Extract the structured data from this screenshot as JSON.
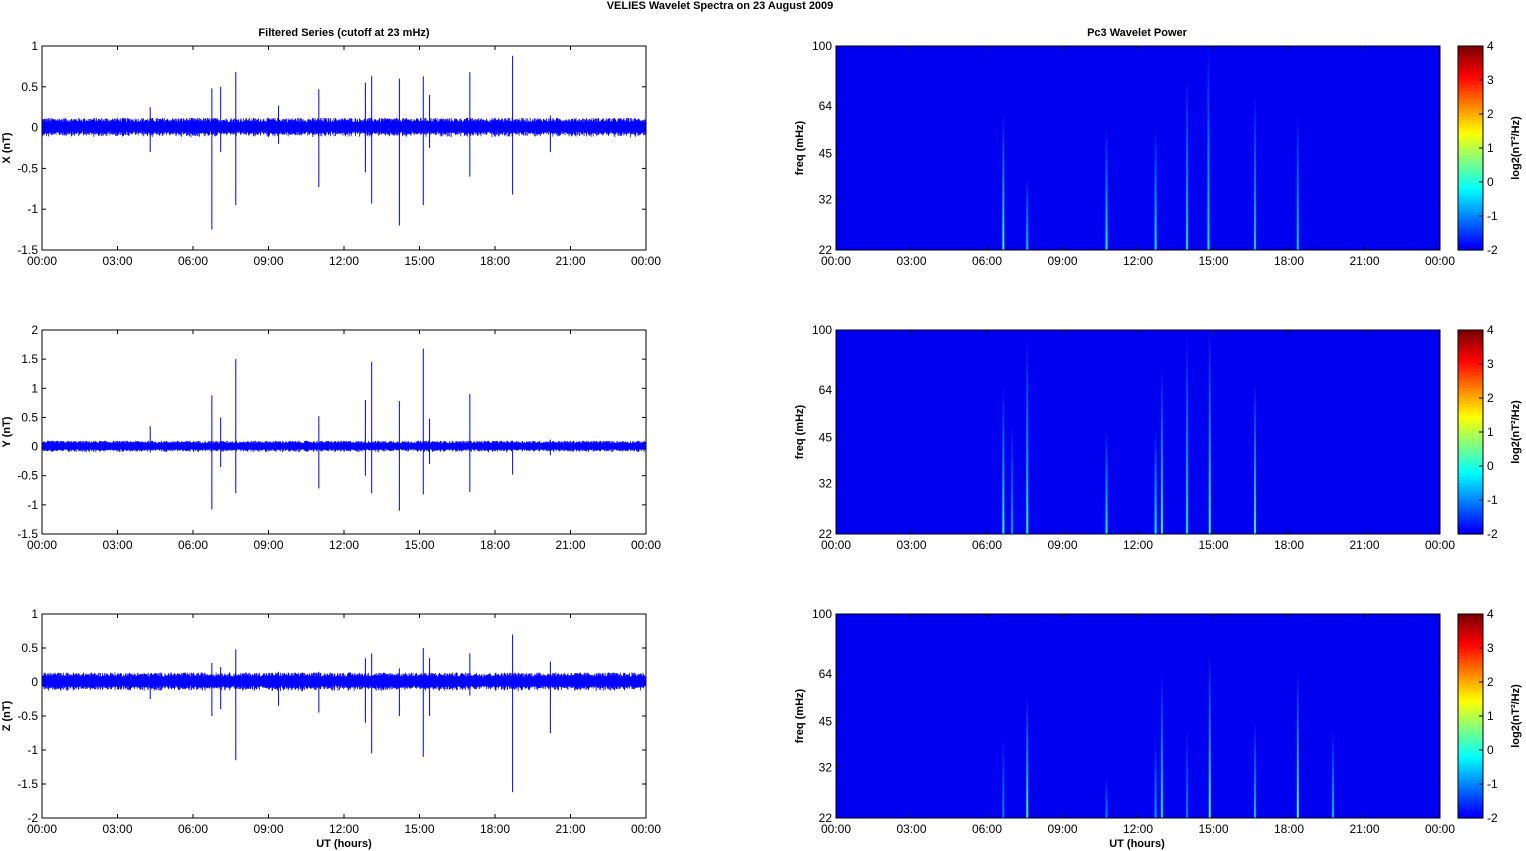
{
  "figure": {
    "title": "VELIES Wavelet Spectra on 23 August    2009",
    "left_title": "Filtered Series (cutoff at 23 mHz)",
    "right_title": "Pc3 Wavelet Power",
    "x_label": "UT (hours)",
    "background": "#ffffff"
  },
  "chart_data": [
    {
      "type": "line",
      "panel": "X",
      "ylabel": "X (nT)",
      "xlim": [
        0,
        24
      ],
      "ylim": [
        -1.5,
        1
      ],
      "x_ticks": [
        "00:00",
        "03:00",
        "06:00",
        "09:00",
        "12:00",
        "15:00",
        "18:00",
        "21:00",
        "00:00"
      ],
      "y_ticks": [
        "1",
        "0.5",
        "0",
        "-0.5",
        "-1",
        "-1.5"
      ],
      "noise_amplitude": 0.12,
      "color": "#0000ff",
      "spikes": [
        {
          "t": 4.3,
          "max": 0.25,
          "min": -0.3
        },
        {
          "t": 6.75,
          "max": 0.48,
          "min": -1.25
        },
        {
          "t": 7.1,
          "max": 0.5,
          "min": -0.3
        },
        {
          "t": 7.7,
          "max": 0.68,
          "min": -0.95
        },
        {
          "t": 9.4,
          "max": 0.27,
          "min": -0.2
        },
        {
          "t": 11.0,
          "max": 0.47,
          "min": -0.73
        },
        {
          "t": 12.85,
          "max": 0.55,
          "min": -0.55
        },
        {
          "t": 13.1,
          "max": 0.63,
          "min": -0.93
        },
        {
          "t": 14.2,
          "max": 0.6,
          "min": -1.2
        },
        {
          "t": 15.15,
          "max": 0.63,
          "min": -0.95
        },
        {
          "t": 15.4,
          "max": 0.4,
          "min": -0.25
        },
        {
          "t": 17.0,
          "max": 0.68,
          "min": -0.6
        },
        {
          "t": 18.7,
          "max": 0.88,
          "min": -0.82
        },
        {
          "t": 20.2,
          "max": 0.15,
          "min": -0.3
        }
      ]
    },
    {
      "type": "line",
      "panel": "Y",
      "ylabel": "Y (nT)",
      "xlim": [
        0,
        24
      ],
      "ylim": [
        -1.5,
        2
      ],
      "x_ticks": [
        "00:00",
        "03:00",
        "06:00",
        "09:00",
        "12:00",
        "15:00",
        "18:00",
        "21:00",
        "00:00"
      ],
      "y_ticks": [
        "2",
        "1.5",
        "1",
        "0.5",
        "0",
        "-0.5",
        "-1",
        "-1.5"
      ],
      "noise_amplitude": 0.1,
      "color": "#0000ff",
      "spikes": [
        {
          "t": 4.3,
          "max": 0.35,
          "min": -0.1
        },
        {
          "t": 6.75,
          "max": 0.88,
          "min": -1.08
        },
        {
          "t": 7.1,
          "max": 0.5,
          "min": -0.35
        },
        {
          "t": 7.7,
          "max": 1.5,
          "min": -0.8
        },
        {
          "t": 11.0,
          "max": 0.52,
          "min": -0.72
        },
        {
          "t": 12.85,
          "max": 0.8,
          "min": -0.5
        },
        {
          "t": 13.1,
          "max": 1.45,
          "min": -0.8
        },
        {
          "t": 14.2,
          "max": 0.78,
          "min": -1.1
        },
        {
          "t": 15.15,
          "max": 1.68,
          "min": -0.82
        },
        {
          "t": 15.4,
          "max": 0.48,
          "min": -0.3
        },
        {
          "t": 17.0,
          "max": 0.9,
          "min": -0.78
        },
        {
          "t": 18.7,
          "max": 0.1,
          "min": -0.48
        },
        {
          "t": 20.2,
          "max": 0.12,
          "min": -0.15
        }
      ]
    },
    {
      "type": "line",
      "panel": "Z",
      "ylabel": "Z (nT)",
      "xlim": [
        0,
        24
      ],
      "ylim": [
        -2,
        1
      ],
      "x_ticks": [
        "00:00",
        "03:00",
        "06:00",
        "09:00",
        "12:00",
        "15:00",
        "18:00",
        "21:00",
        "00:00"
      ],
      "y_ticks": [
        "1",
        "0.5",
        "0",
        "-0.5",
        "-1",
        "-1.5",
        "-2"
      ],
      "noise_amplitude": 0.14,
      "color": "#0000ff",
      "spikes": [
        {
          "t": 4.3,
          "max": 0.12,
          "min": -0.25
        },
        {
          "t": 6.75,
          "max": 0.28,
          "min": -0.5
        },
        {
          "t": 7.1,
          "max": 0.22,
          "min": -0.4
        },
        {
          "t": 7.7,
          "max": 0.48,
          "min": -1.15
        },
        {
          "t": 9.4,
          "max": 0.15,
          "min": -0.35
        },
        {
          "t": 11.0,
          "max": 0.15,
          "min": -0.45
        },
        {
          "t": 12.85,
          "max": 0.35,
          "min": -0.6
        },
        {
          "t": 13.1,
          "max": 0.42,
          "min": -1.05
        },
        {
          "t": 14.2,
          "max": 0.2,
          "min": -0.5
        },
        {
          "t": 15.15,
          "max": 0.5,
          "min": -1.1
        },
        {
          "t": 15.4,
          "max": 0.35,
          "min": -0.5
        },
        {
          "t": 17.0,
          "max": 0.42,
          "min": -0.2
        },
        {
          "t": 18.7,
          "max": 0.7,
          "min": -1.62
        },
        {
          "t": 20.2,
          "max": 0.3,
          "min": -0.75
        }
      ]
    },
    {
      "type": "heatmap",
      "panel": "X",
      "ylabel": "freq (mHz)",
      "colorbar_label": "log2(nT²/Hz)",
      "xlim": [
        0,
        24
      ],
      "ylim": [
        22,
        100
      ],
      "y_scale": "log",
      "x_ticks": [
        "00:00",
        "03:00",
        "06:00",
        "09:00",
        "12:00",
        "15:00",
        "18:00",
        "21:00",
        "00:00"
      ],
      "y_ticks": [
        "100",
        "64",
        "45",
        "32",
        "22"
      ],
      "clim": [
        -2,
        4
      ],
      "colorbar_ticks": [
        "4",
        "3",
        "2",
        "1",
        "0",
        "-1",
        "-2"
      ],
      "colormap": "jet",
      "background_level": -2,
      "streaks": [
        {
          "t": 6.65,
          "fmax": 60,
          "level": 0.2
        },
        {
          "t": 7.6,
          "fmax": 38,
          "level": -0.5
        },
        {
          "t": 10.75,
          "fmax": 55,
          "level": -0.2
        },
        {
          "t": 12.7,
          "fmax": 55,
          "level": -0.3
        },
        {
          "t": 13.95,
          "fmax": 80,
          "level": -0.4
        },
        {
          "t": 14.8,
          "fmax": 100,
          "level": -0.3
        },
        {
          "t": 16.65,
          "fmax": 70,
          "level": -0.5
        },
        {
          "t": 18.35,
          "fmax": 60,
          "level": -0.5
        }
      ]
    },
    {
      "type": "heatmap",
      "panel": "Y",
      "ylabel": "freq (mHz)",
      "colorbar_label": "log2(nT²/Hz)",
      "xlim": [
        0,
        24
      ],
      "ylim": [
        22,
        100
      ],
      "y_scale": "log",
      "x_ticks": [
        "00:00",
        "03:00",
        "06:00",
        "09:00",
        "12:00",
        "15:00",
        "18:00",
        "21:00",
        "00:00"
      ],
      "y_ticks": [
        "100",
        "64",
        "45",
        "32",
        "22"
      ],
      "clim": [
        -2,
        4
      ],
      "colorbar_ticks": [
        "4",
        "3",
        "2",
        "1",
        "0",
        "-1",
        "-2"
      ],
      "colormap": "jet",
      "background_level": -2,
      "streaks": [
        {
          "t": 6.65,
          "fmax": 65,
          "level": 0.1
        },
        {
          "t": 7.0,
          "fmax": 50,
          "level": -0.8
        },
        {
          "t": 7.6,
          "fmax": 95,
          "level": 0.0
        },
        {
          "t": 10.75,
          "fmax": 48,
          "level": -0.2
        },
        {
          "t": 12.7,
          "fmax": 48,
          "level": -0.2
        },
        {
          "t": 12.95,
          "fmax": 75,
          "level": 0.0
        },
        {
          "t": 13.95,
          "fmax": 95,
          "level": -0.3
        },
        {
          "t": 14.85,
          "fmax": 100,
          "level": 0.2
        },
        {
          "t": 16.65,
          "fmax": 68,
          "level": 0.0
        }
      ]
    },
    {
      "type": "heatmap",
      "panel": "Z",
      "ylabel": "freq (mHz)",
      "colorbar_label": "log2(nT²/Hz)",
      "xlim": [
        0,
        24
      ],
      "ylim": [
        22,
        100
      ],
      "y_scale": "log",
      "x_ticks": [
        "00:00",
        "03:00",
        "06:00",
        "09:00",
        "12:00",
        "15:00",
        "18:00",
        "21:00",
        "00:00"
      ],
      "y_ticks": [
        "100",
        "64",
        "45",
        "32",
        "22"
      ],
      "clim": [
        -2,
        4
      ],
      "colorbar_ticks": [
        "4",
        "3",
        "2",
        "1",
        "0",
        "-1",
        "-2"
      ],
      "colormap": "jet",
      "background_level": -2,
      "streaks": [
        {
          "t": 6.65,
          "fmax": 40,
          "level": -1.0
        },
        {
          "t": 7.6,
          "fmax": 55,
          "level": 0.2
        },
        {
          "t": 10.75,
          "fmax": 30,
          "level": -1.0
        },
        {
          "t": 12.7,
          "fmax": 40,
          "level": -0.8
        },
        {
          "t": 12.95,
          "fmax": 65,
          "level": -0.3
        },
        {
          "t": 13.95,
          "fmax": 42,
          "level": -1.0
        },
        {
          "t": 14.85,
          "fmax": 75,
          "level": 0.3
        },
        {
          "t": 16.65,
          "fmax": 45,
          "level": -0.6
        },
        {
          "t": 18.35,
          "fmax": 65,
          "level": 0.4
        },
        {
          "t": 19.75,
          "fmax": 42,
          "level": -0.6
        }
      ]
    }
  ]
}
